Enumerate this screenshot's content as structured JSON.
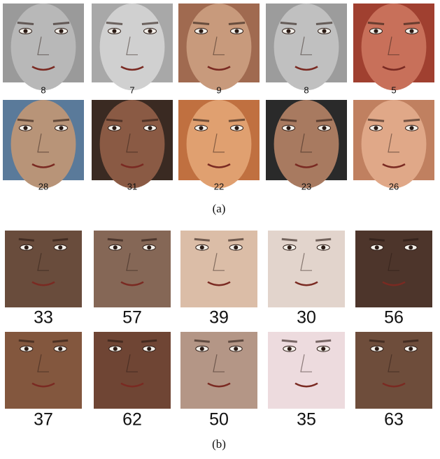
{
  "panels": [
    {
      "caption": "(a)",
      "rows": [
        [
          8,
          7,
          9,
          8,
          5
        ],
        [
          28,
          31,
          22,
          23,
          26
        ]
      ]
    },
    {
      "caption": "(b)",
      "rows": [
        [
          33,
          57,
          39,
          30,
          56
        ],
        [
          37,
          62,
          50,
          35,
          63
        ]
      ]
    }
  ]
}
